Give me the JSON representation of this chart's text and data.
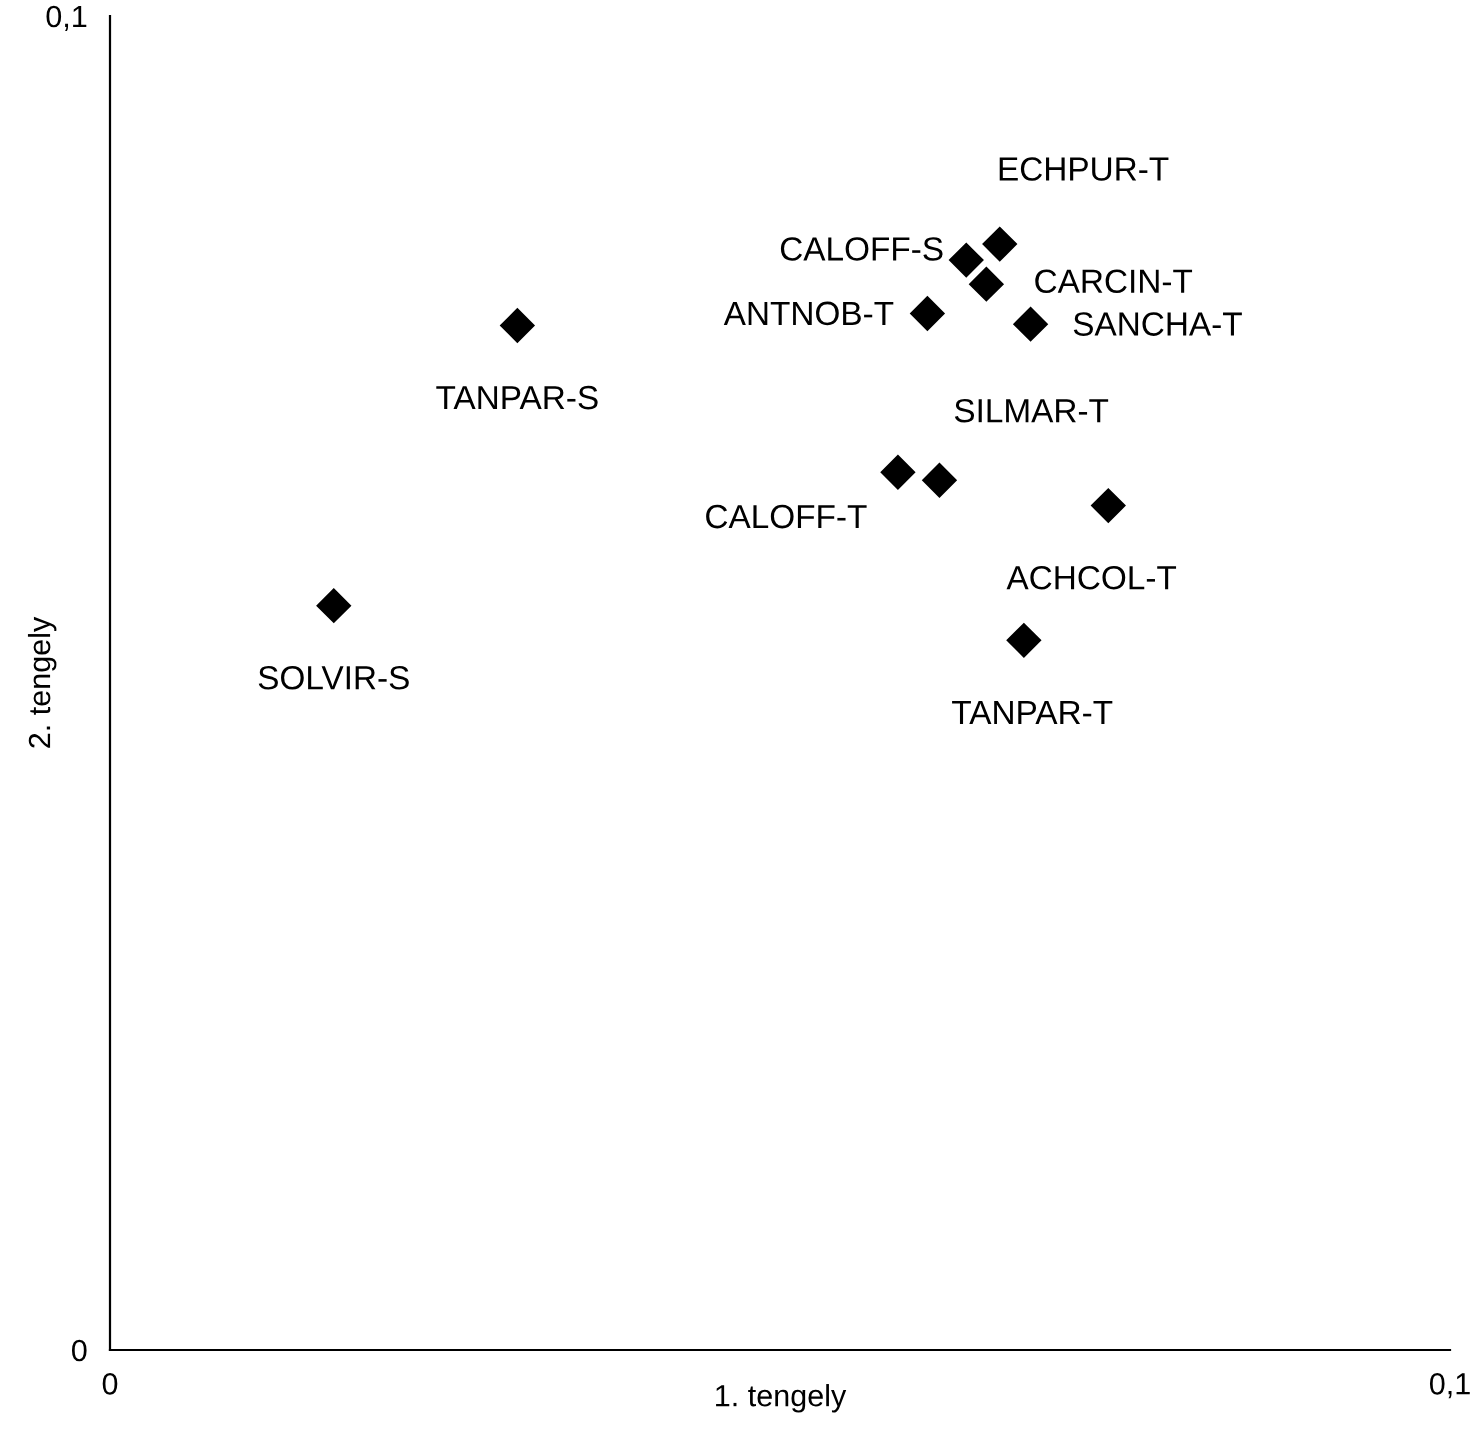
{
  "chart_data": {
    "type": "scatter",
    "xlabel": "1. tengely",
    "ylabel": "2. tengely",
    "color": "#000000",
    "marker": "diamond",
    "grid": false,
    "x": [
      0.0304,
      0.0167,
      0.0639,
      0.0664,
      0.0654,
      0.061,
      0.0687,
      0.0588,
      0.0619,
      0.0745,
      0.0682
    ],
    "values": [
      0.0768,
      0.0558,
      0.0817,
      0.0829,
      0.0799,
      0.0777,
      0.0769,
      0.0658,
      0.0652,
      0.0633,
      0.0532
    ],
    "xlim": [
      0,
      0.1
    ],
    "ylim": [
      0,
      0.1
    ],
    "xticks": [
      0,
      {
        "value": 0.1,
        "label": "0,1"
      }
    ],
    "yticks": [
      0,
      {
        "value": 0.1,
        "label": "0,1"
      }
    ],
    "annotations": [
      {
        "text": "TANPAR-S",
        "x": 0.0304,
        "y": 0.0768
      },
      {
        "text": "SOLVIR-S",
        "x": 0.0167,
        "y": 0.0558
      },
      {
        "text": "CALOFF-S",
        "x": 0.0639,
        "y": 0.0817
      },
      {
        "text": "ECHPUR-T",
        "x": 0.0664,
        "y": 0.0829
      },
      {
        "text": "CARCIN-T",
        "x": 0.0654,
        "y": 0.0799
      },
      {
        "text": "ANTNOB-T",
        "x": 0.061,
        "y": 0.0777
      },
      {
        "text": "SANCHA-T",
        "x": 0.0687,
        "y": 0.0769
      },
      {
        "text": "CALOFF-T",
        "x": 0.0588,
        "y": 0.0658
      },
      {
        "text": "SILMAR-T",
        "x": 0.0619,
        "y": 0.0652
      },
      {
        "text": "ACHCOL-T",
        "x": 0.0745,
        "y": 0.0633
      },
      {
        "text": "TANPAR-T",
        "x": 0.0682,
        "y": 0.0532
      }
    ]
  }
}
